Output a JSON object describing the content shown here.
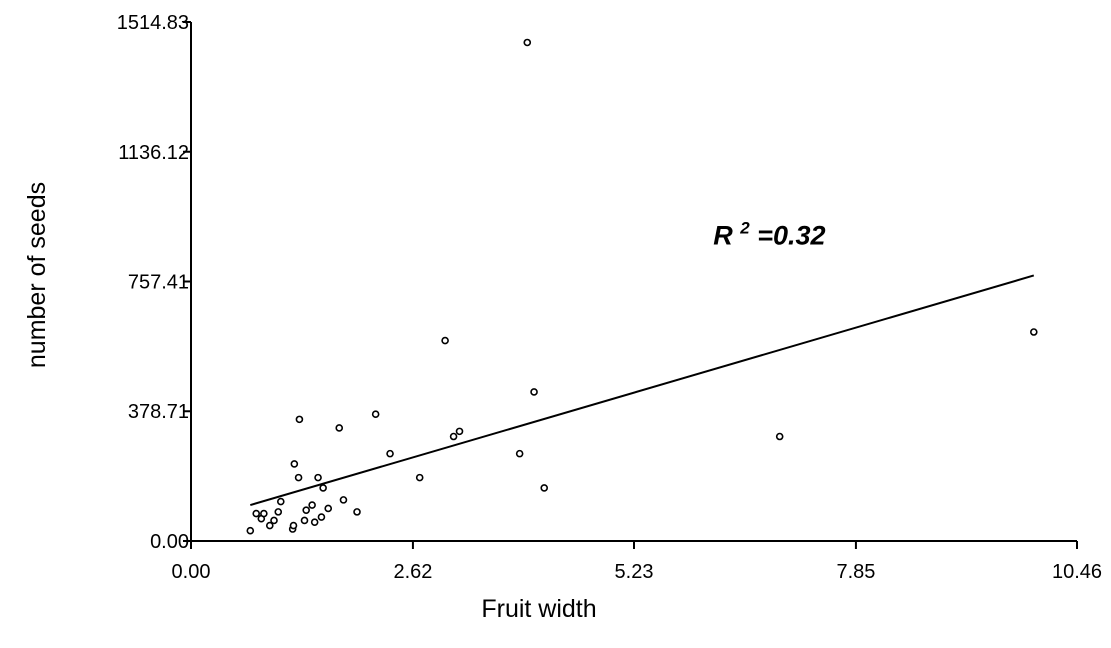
{
  "chart_data": {
    "type": "scatter",
    "title": "",
    "xlabel": "Fruit width",
    "ylabel": "number of seeds",
    "xlim": [
      0,
      10.46
    ],
    "ylim": [
      0,
      1514.83
    ],
    "x_ticks": [
      0.0,
      2.62,
      5.23,
      7.85,
      10.46
    ],
    "x_tick_labels": [
      "0.00",
      "2.62",
      "5.23",
      "7.85",
      "10.46"
    ],
    "y_ticks": [
      0.0,
      378.71,
      757.41,
      1136.12,
      1514.83
    ],
    "y_tick_labels": [
      "0.00",
      "378.71",
      "757.41",
      "1136.12",
      "1514.83"
    ],
    "grid": false,
    "legend": "none",
    "series": [
      {
        "points": [
          [
            0.7,
            30
          ],
          [
            0.77,
            80
          ],
          [
            0.83,
            65
          ],
          [
            0.86,
            80
          ],
          [
            0.93,
            45
          ],
          [
            0.98,
            60
          ],
          [
            1.03,
            85
          ],
          [
            1.06,
            115
          ],
          [
            1.2,
            35
          ],
          [
            1.21,
            45
          ],
          [
            1.22,
            225
          ],
          [
            1.27,
            185
          ],
          [
            1.28,
            355
          ],
          [
            1.34,
            60
          ],
          [
            1.36,
            90
          ],
          [
            1.43,
            105
          ],
          [
            1.46,
            55
          ],
          [
            1.5,
            185
          ],
          [
            1.54,
            70
          ],
          [
            1.56,
            155
          ],
          [
            1.62,
            95
          ],
          [
            1.75,
            330
          ],
          [
            1.8,
            120
          ],
          [
            1.96,
            85
          ],
          [
            2.18,
            370
          ],
          [
            2.35,
            255
          ],
          [
            2.7,
            185
          ],
          [
            3.0,
            585
          ],
          [
            3.1,
            305
          ],
          [
            3.17,
            320
          ],
          [
            3.88,
            255
          ],
          [
            3.97,
            1455
          ],
          [
            4.05,
            435
          ],
          [
            4.17,
            155
          ],
          [
            6.95,
            305
          ],
          [
            9.95,
            610
          ]
        ],
        "marker": "open-circle",
        "color": "#000000"
      }
    ],
    "trendline": {
      "type": "linear",
      "x": [
        0.7,
        9.95
      ],
      "y": [
        105,
        775
      ]
    },
    "annotation": {
      "base": "R",
      "superscript": "2",
      "text": "=0.32",
      "anchor_x": 6.0,
      "anchor_y": 895
    }
  }
}
